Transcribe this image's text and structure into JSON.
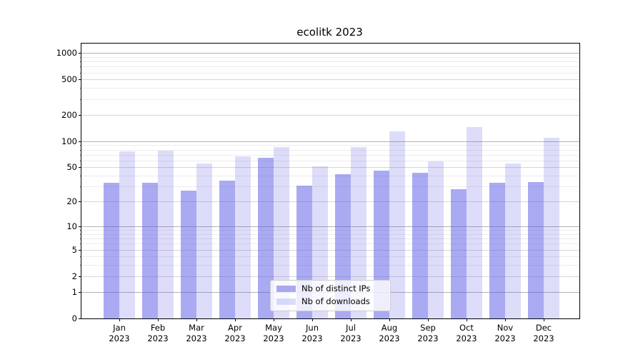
{
  "chart_data": {
    "type": "bar",
    "title": "ecolitk 2023",
    "categories": [
      "Jan",
      "Feb",
      "Mar",
      "Apr",
      "May",
      "Jun",
      "Jul",
      "Aug",
      "Sep",
      "Oct",
      "Nov",
      "Dec"
    ],
    "year_label": "2023",
    "series": [
      {
        "name": "Nb of distinct IPs",
        "color": "rgba(85,85,229,0.5)",
        "values": [
          33,
          33,
          27,
          35,
          65,
          31,
          42,
          46,
          43,
          28,
          33,
          34
        ]
      },
      {
        "name": "Nb of downloads",
        "color": "rgba(85,85,229,0.2)",
        "values": [
          76,
          78,
          55,
          67,
          86,
          51,
          85,
          130,
          59,
          145,
          55,
          110
        ]
      }
    ],
    "y_axis": {
      "scale": "log1p",
      "tick_labels": [
        "0",
        "1",
        "2",
        "5",
        "10",
        "20",
        "50",
        "100",
        "200",
        "500",
        "1000"
      ],
      "tick_values": [
        0,
        1,
        2,
        5,
        10,
        20,
        50,
        100,
        200,
        500,
        1000
      ],
      "decade_ticks": [
        1,
        10,
        100,
        1000
      ],
      "mid_ticks": [
        2,
        5,
        20,
        50,
        200,
        500
      ],
      "minor_ticks": [
        3,
        4,
        6,
        7,
        8,
        9,
        30,
        40,
        60,
        70,
        80,
        90,
        300,
        400,
        600,
        700,
        800,
        900
      ],
      "ylim": [
        0,
        1270
      ],
      "grid": "on"
    },
    "x_axis": {
      "tick_label_lines": 2
    },
    "legend_position": "lower-center",
    "colors": {
      "distinct_ips_on_white": "#aaaaf2",
      "downloads_on_white": "#ddddf9"
    }
  }
}
